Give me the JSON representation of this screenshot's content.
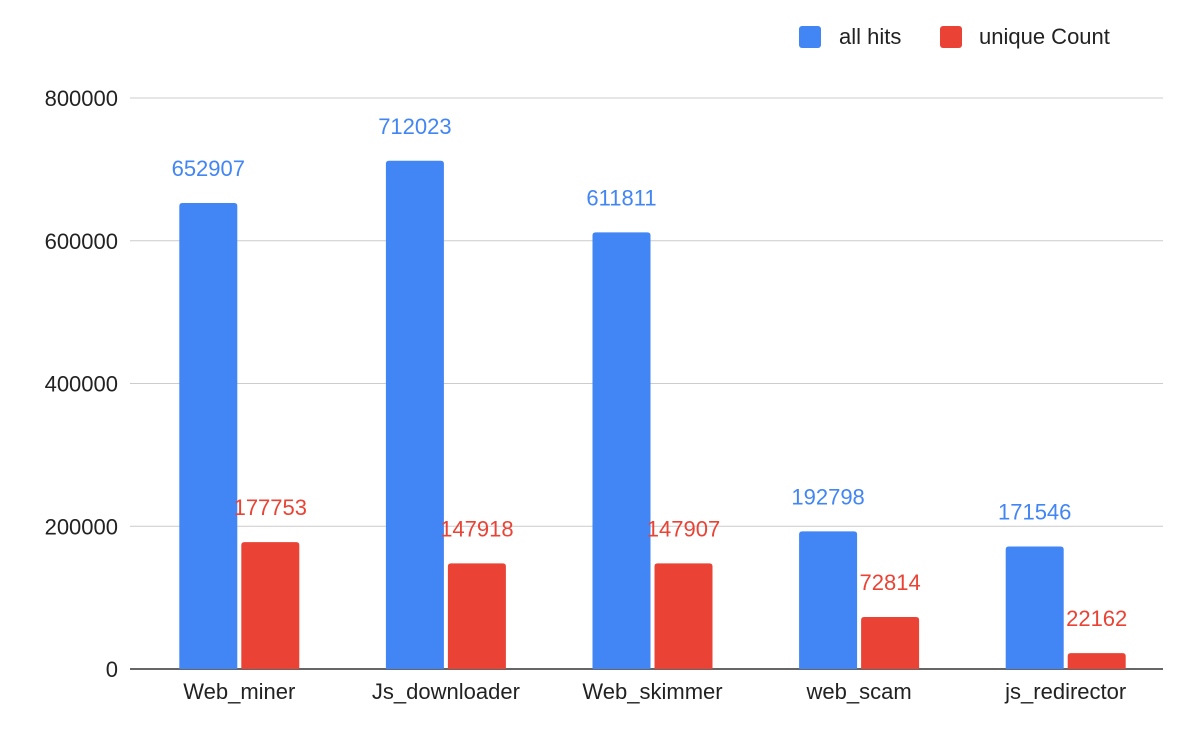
{
  "chart_data": {
    "type": "bar",
    "title": "",
    "xlabel": "",
    "ylabel": "",
    "categories": [
      "Web_miner",
      "Js_downloader",
      "Web_skimmer",
      "web_scam",
      "js_redirector"
    ],
    "series": [
      {
        "name": "all hits",
        "color": "#4285f4",
        "values": [
          652907,
          712023,
          611811,
          192798,
          171546
        ]
      },
      {
        "name": "unique Count",
        "color": "#ea4335",
        "values": [
          177753,
          147918,
          147907,
          72814,
          22162
        ]
      }
    ],
    "ylim": [
      0,
      800000
    ],
    "yticks": [
      "0",
      "200000",
      "400000",
      "600000",
      "800000"
    ],
    "grid": true,
    "legend_position": "top-right",
    "data_labels": true
  }
}
